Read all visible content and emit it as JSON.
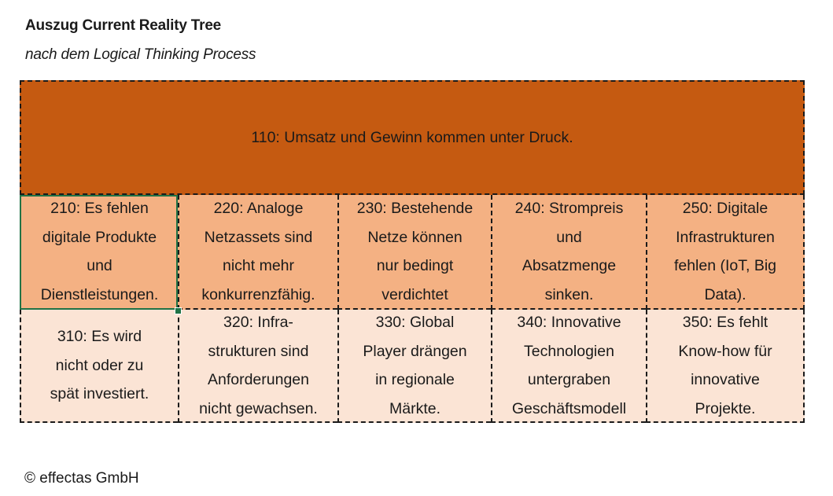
{
  "title": "Auszug Current Reality Tree",
  "subtitle": "nach dem Logical Thinking Process",
  "top_node": "110: Umsatz und Gewinn kommen unter Druck.",
  "row2": [
    {
      "lines": [
        "210: Es fehlen",
        "digitale Produkte",
        "und",
        "Dienstleistungen."
      ]
    },
    {
      "lines": [
        "220: Analoge",
        "Netzassets sind",
        "nicht mehr",
        "konkurrenzfähig."
      ]
    },
    {
      "lines": [
        "230: Bestehende",
        "Netze können",
        "nur bedingt",
        "verdichtet"
      ]
    },
    {
      "lines": [
        "240: Strompreis",
        "und",
        "Absatzmenge",
        "sinken."
      ]
    },
    {
      "lines": [
        "250: Digitale",
        "Infrastrukturen",
        "fehlen (IoT, Big",
        "Data)."
      ]
    }
  ],
  "row3": [
    {
      "lines": [
        "310: Es wird",
        "nicht oder zu",
        "spät investiert."
      ]
    },
    {
      "lines": [
        "320: Infra-",
        "strukturen sind",
        "Anforderungen",
        "nicht gewachsen."
      ]
    },
    {
      "lines": [
        "330: Global",
        "Player drängen",
        "in regionale",
        "Märkte."
      ]
    },
    {
      "lines": [
        "340: Innovative",
        "Technologien",
        "untergraben",
        "Geschäftsmodell"
      ]
    },
    {
      "lines": [
        "350: Es fehlt",
        "Know-how für",
        "innovative",
        "Projekte."
      ]
    }
  ],
  "footer": "© effectas GmbH",
  "colors": {
    "row1": "#c55a11",
    "row2": "#f4b183",
    "row3": "#fbe4d5",
    "selection": "#217346"
  }
}
